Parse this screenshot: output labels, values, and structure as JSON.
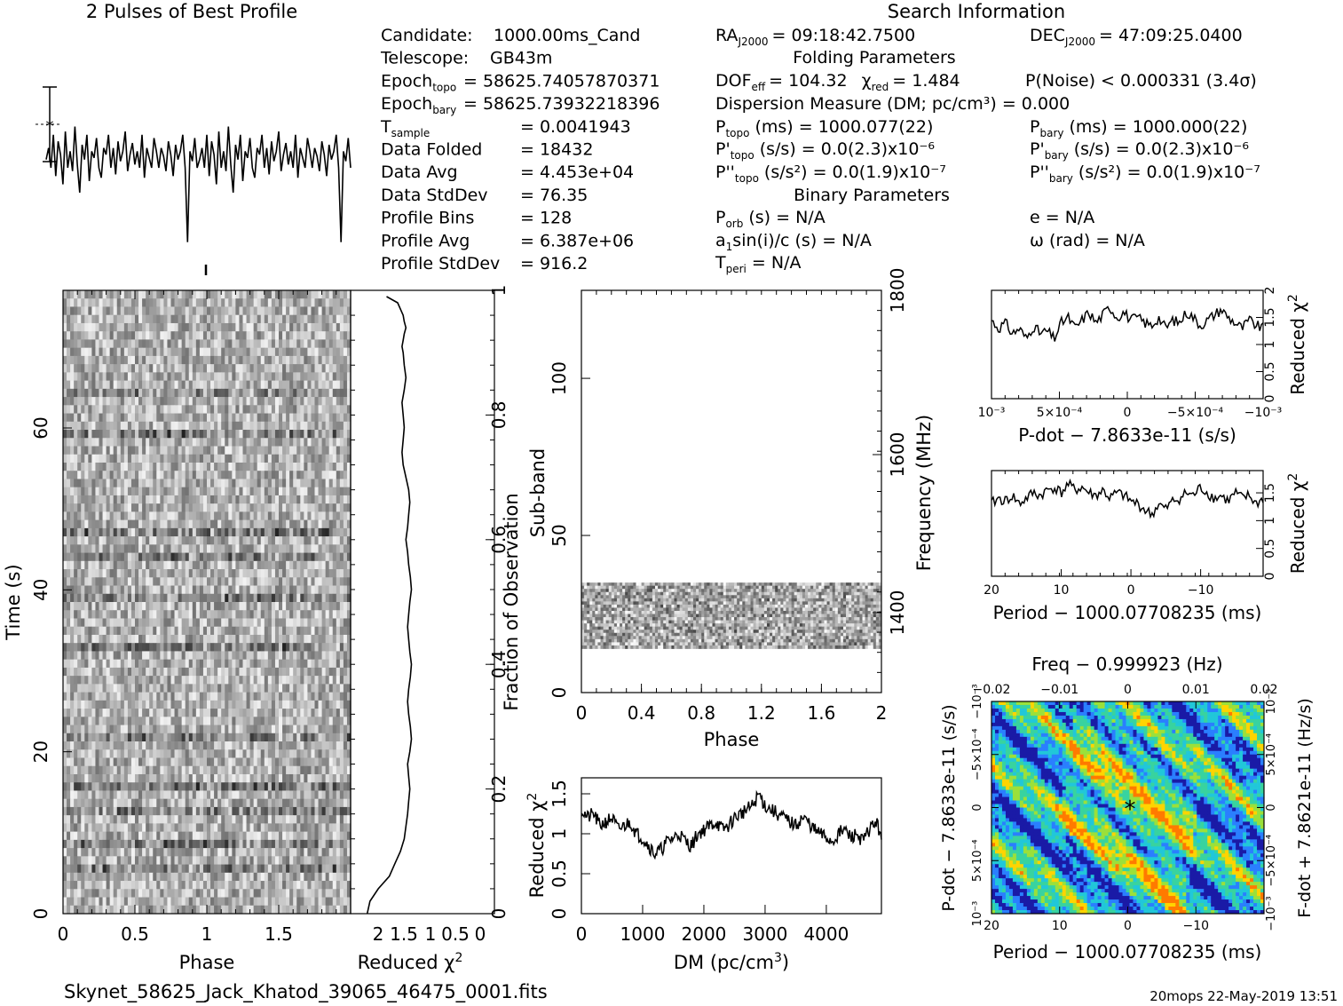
{
  "header": {
    "profile_title": "2 Pulses of Best Profile",
    "search_title": "Search Information",
    "footer_file": "Skynet_58625_Jack_Khatod_39065_46475_0001.fits",
    "footer_stamp": "20mops 22-May-2019 13:51"
  },
  "info": {
    "col1": [
      {
        "label": "Candidate:",
        "value": "1000.00ms_Cand"
      },
      {
        "label": "Telescope:",
        "value": "GB43m"
      },
      {
        "label": "Epoch",
        "sub": "topo",
        "value": "= 58625.74057870371"
      },
      {
        "label": "Epoch",
        "sub": "bary",
        "value": "= 58625.73932218396"
      },
      {
        "label": "T",
        "sub": "sample",
        "value": "=   0.0041943"
      },
      {
        "label": "Data Folded",
        "value": "=   18432"
      },
      {
        "label": "Data Avg",
        "value": "=   4.453e+04"
      },
      {
        "label": "Data StdDev",
        "value": "=   76.35"
      },
      {
        "label": "Profile Bins",
        "value": "=   128"
      },
      {
        "label": "Profile Avg",
        "value": "=   6.387e+06"
      },
      {
        "label": "Profile StdDev",
        "value": "=   916.2"
      }
    ],
    "ra": "RA",
    "ra_sub": "J2000",
    "ra_val": "= 09:18:42.7500",
    "dec": "DEC",
    "dec_sub": "J2000",
    "dec_val": "= 47:09:25.0400",
    "folding_title": "Folding Parameters",
    "dof": "DOF",
    "dof_sub": "eff",
    "dof_val": "= 104.32",
    "chi": "χ",
    "chi_sub": "red",
    "chi_val": "= 1.484",
    "pnoise": "P(Noise) < 0.000331   (3.4σ)",
    "dm_line": "Dispersion Measure (DM; pc/cm³) = 0.000",
    "ptopo": "P",
    "ptopo_sub": "topo",
    "ptopo_val": "(ms) =  1000.077(22)",
    "pbary": "P",
    "pbary_sub": "bary",
    "pbary_val": "(ms) =  1000.000(22)",
    "pdtopo": "P'",
    "pdtopo_sub": "topo",
    "pdtopo_val": "(s/s) = 0.0(2.3)x10⁻⁶",
    "pdbary": "P'",
    "pdbary_sub": "bary",
    "pdbary_val": "(s/s) = 0.0(2.3)x10⁻⁶",
    "pddtopo": "P''",
    "pddtopo_sub": "topo",
    "pddtopo_val": "(s/s²) = 0.0(1.9)x10⁻⁷",
    "pddbary": "P''",
    "pddbary_sub": "bary",
    "pddbary_val": "(s/s²) = 0.0(1.9)x10⁻⁷",
    "binary_title": "Binary Parameters",
    "porb": "P",
    "porb_sub": "orb",
    "porb_val": "(s) = N/A",
    "ecc": "e = N/A",
    "a1": "a",
    "a1_sub": "1",
    "a1_val": "sin(i)/c (s) = N/A",
    "omega": "ω (rad) = N/A",
    "tperi": "T",
    "tperi_sub": "peri",
    "tperi_val": "= N/A"
  },
  "chart_data": [
    {
      "id": "pulse-profile",
      "type": "line",
      "title": "2 Pulses of Best Profile",
      "xlim": [
        0,
        2
      ],
      "description": "folded profile, 2 pulses",
      "series": [
        {
          "values": [
            0.55,
            0.62,
            0.5,
            0.7,
            0.45,
            0.66,
            0.58,
            0.4,
            0.72,
            0.5,
            0.6,
            0.48,
            0.75,
            0.52,
            0.35,
            0.64,
            0.55,
            0.7,
            0.42,
            0.6,
            0.56,
            0.68,
            0.5,
            0.44,
            0.62,
            0.58,
            0.7,
            0.5,
            0.62,
            0.46,
            0.66,
            0.54,
            0.6,
            0.72,
            0.48,
            0.58,
            0.65,
            0.52,
            0.6,
            0.5,
            0.7,
            0.44,
            0.62,
            0.56,
            0.5,
            0.68,
            0.6,
            0.5,
            0.62,
            0.57,
            0.48,
            0.66,
            0.58,
            0.45,
            0.64,
            0.55,
            0.6,
            0.7,
            0.5,
            0.05,
            0.6,
            0.54,
            0.68,
            0.5,
            0.55,
            0.62,
            0.5,
            0.7,
            0.45,
            0.66,
            0.58,
            0.4,
            0.72,
            0.5,
            0.6,
            0.48,
            0.75,
            0.52,
            0.35,
            0.64,
            0.55,
            0.7,
            0.42,
            0.6,
            0.56,
            0.68,
            0.5,
            0.44,
            0.62,
            0.58,
            0.7,
            0.5,
            0.62,
            0.46,
            0.66,
            0.54,
            0.6,
            0.72,
            0.48,
            0.58,
            0.65,
            0.52,
            0.6,
            0.5,
            0.7,
            0.44,
            0.62,
            0.56,
            0.5,
            0.68,
            0.6,
            0.5,
            0.62,
            0.57,
            0.48,
            0.66,
            0.58,
            0.45,
            0.64,
            0.55,
            0.6,
            0.7,
            0.5,
            0.05,
            0.6,
            0.54,
            0.68,
            0.5
          ]
        }
      ]
    },
    {
      "id": "time-phase",
      "type": "heatmap",
      "xlabel": "Phase",
      "ylabel": "Time (s)",
      "xlim": [
        0,
        2
      ],
      "ylim": [
        0,
        77
      ],
      "xticks": [
        "0",
        "0.5",
        "1",
        "1.5"
      ],
      "yticks": [
        "0",
        "20",
        "40",
        "60"
      ]
    },
    {
      "id": "time-chi2",
      "type": "line",
      "xlabel": "Reduced χ²",
      "ylabel": "Fraction of Observation",
      "xticks": [
        "2",
        "1.5",
        "1",
        "0.5",
        "0"
      ],
      "yticks": [
        "0",
        "0.2",
        "0.4",
        "0.6",
        "0.8",
        "1"
      ],
      "x": [
        2.25,
        2.2,
        2.05,
        1.85,
        1.75,
        1.65,
        1.58,
        1.55,
        1.52,
        1.5,
        1.48,
        1.5,
        1.52,
        1.48,
        1.45,
        1.47,
        1.5,
        1.52,
        1.5,
        1.47,
        1.45,
        1.48,
        1.5,
        1.52,
        1.5,
        1.48,
        1.45,
        1.47,
        1.5,
        1.52,
        1.55,
        1.52,
        1.5,
        1.48,
        1.5,
        1.55,
        1.6,
        1.62,
        1.6,
        1.58,
        1.6,
        1.62,
        1.58,
        1.55,
        1.58,
        1.6,
        1.62,
        1.6,
        1.58,
        1.55,
        1.58,
        1.6,
        1.65,
        1.7,
        1.9
      ],
      "y": [
        0.0,
        0.02,
        0.04,
        0.06,
        0.08,
        0.1,
        0.12,
        0.14,
        0.16,
        0.18,
        0.2,
        0.22,
        0.24,
        0.26,
        0.28,
        0.3,
        0.32,
        0.34,
        0.36,
        0.38,
        0.4,
        0.42,
        0.44,
        0.46,
        0.48,
        0.5,
        0.52,
        0.54,
        0.56,
        0.58,
        0.6,
        0.62,
        0.64,
        0.66,
        0.68,
        0.7,
        0.72,
        0.74,
        0.76,
        0.78,
        0.8,
        0.82,
        0.84,
        0.86,
        0.88,
        0.9,
        0.91,
        0.92,
        0.93,
        0.94,
        0.95,
        0.96,
        0.97,
        0.98,
        0.99
      ]
    },
    {
      "id": "subband-phase",
      "type": "heatmap",
      "xlabel": "Phase",
      "ylabel": "Sub-band",
      "ylabel2": "Frequency (MHz)",
      "xlim": [
        0,
        2
      ],
      "ylim": [
        0,
        128
      ],
      "xticks": [
        "0",
        "0.4",
        "0.8",
        "1.2",
        "1.6",
        "2"
      ],
      "yticks": [
        "0",
        "50",
        "100"
      ],
      "yticks2": [
        "1400",
        "1600",
        "1800"
      ],
      "band_range": [
        14,
        35
      ]
    },
    {
      "id": "dm-chi2",
      "type": "line",
      "xlabel": "DM (pc/cm³)",
      "ylabel": "Reduced χ²",
      "xlim": [
        0,
        4900
      ],
      "ylim": [
        0,
        1.7
      ],
      "xticks": [
        "0",
        "1000",
        "2000",
        "3000",
        "4000"
      ],
      "yticks": [
        "0",
        "0.5",
        "1",
        "1.5"
      ],
      "values": [
        1.3,
        1.2,
        1.25,
        1.1,
        1.15,
        1.2,
        1.05,
        1.1,
        1.15,
        1.0,
        0.95,
        0.85,
        0.75,
        0.8,
        0.9,
        0.95,
        1.0,
        0.9,
        0.85,
        1.0,
        1.05,
        1.1,
        1.15,
        1.05,
        1.1,
        1.2,
        1.25,
        1.3,
        1.35,
        1.5,
        1.35,
        1.3,
        1.25,
        1.2,
        1.15,
        1.1,
        1.2,
        1.15,
        1.05,
        1.0,
        0.95,
        0.9,
        1.0,
        1.05,
        0.95,
        1.0,
        0.9,
        1.05,
        1.15,
        1.0
      ]
    },
    {
      "id": "pdot-chi2",
      "type": "line",
      "xlabel": "P-dot − 7.8633e-11 (s/s)",
      "ylabel": "Reduced χ²",
      "xticks": [
        "10⁻³",
        "5×10⁻⁴",
        "0",
        "−5×10⁻⁴",
        "−10⁻³"
      ],
      "yticks": [
        "0",
        "0.5",
        "1",
        "1.5",
        "2"
      ],
      "ylim": [
        0,
        2
      ],
      "values": [
        1.45,
        1.3,
        1.4,
        1.2,
        1.3,
        1.1,
        1.35,
        1.2,
        1.25,
        1.1,
        1.4,
        1.5,
        1.3,
        1.45,
        1.6,
        1.4,
        1.55,
        1.7,
        1.5,
        1.6,
        1.45,
        1.5,
        1.4,
        1.35,
        1.5,
        1.3,
        1.45,
        1.4,
        1.6,
        1.5,
        1.35,
        1.45,
        1.55,
        1.65,
        1.5,
        1.4,
        1.3,
        1.45,
        1.35,
        1.3
      ]
    },
    {
      "id": "period-chi2",
      "type": "line",
      "xlabel": "Period − 1000.07708235 (ms)",
      "ylabel": "Reduced χ²",
      "xticks": [
        "20",
        "10",
        "0",
        "−10"
      ],
      "yticks": [
        "0",
        "0.5",
        "1",
        "1.5"
      ],
      "ylim": [
        0,
        1.9
      ],
      "values": [
        1.3,
        1.4,
        1.35,
        1.45,
        1.3,
        1.4,
        1.5,
        1.45,
        1.55,
        1.6,
        1.5,
        1.65,
        1.55,
        1.6,
        1.5,
        1.45,
        1.55,
        1.4,
        1.5,
        1.45,
        1.35,
        1.3,
        1.2,
        1.1,
        1.3,
        1.2,
        1.35,
        1.4,
        1.5,
        1.45,
        1.6,
        1.5,
        1.4,
        1.45,
        1.35,
        1.5,
        1.4,
        1.45,
        1.3,
        1.4
      ]
    },
    {
      "id": "p-pdot-plane",
      "type": "heatmap",
      "xlabel": "Period − 1000.07708235 (ms)",
      "ylabel": "P-dot − 7.8633e-11 (s/s)",
      "xlabel2": "Freq − 0.999923 (Hz)",
      "ylabel2": "F-dot + 7.8621e-11 (Hz/s)",
      "xticks": [
        "20",
        "10",
        "0",
        "−10"
      ],
      "xticks2": [
        "−0.02",
        "−0.01",
        "0",
        "0.01",
        "0.02"
      ],
      "yticks": [
        "10⁻³",
        "5×10⁻⁴",
        "0",
        "−5×10⁻⁴",
        "−10⁻³"
      ],
      "yticks2": [
        "−10⁻³",
        "−5×10⁻⁴",
        "0",
        "5×10⁻⁴",
        "10⁻³"
      ],
      "colors": [
        "#1a1aa6",
        "#2a7fff",
        "#21c7d9",
        "#38d39f",
        "#9be03a",
        "#ffd400",
        "#ff7a00"
      ]
    }
  ]
}
